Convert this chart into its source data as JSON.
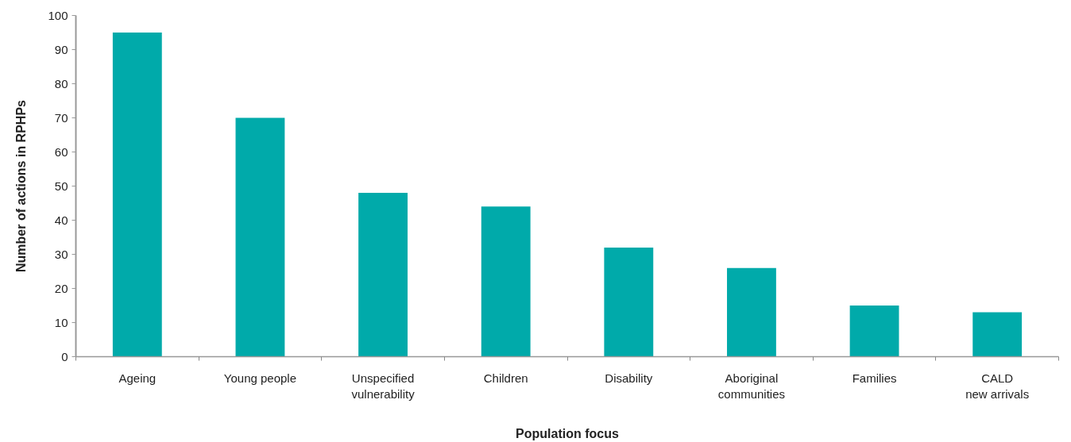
{
  "chart_data": {
    "type": "bar",
    "xlabel": "Population focus",
    "ylabel": "Number of actions in RPHPs",
    "categories": [
      "Ageing",
      "Young people",
      "Unspecified\nvulnerability",
      "Children",
      "Disability",
      "Aboriginal\ncommunities",
      "Families",
      "CALD\nnew arrivals"
    ],
    "values": [
      95,
      70,
      48,
      44,
      32,
      26,
      15,
      13
    ],
    "color": "#00aaaa",
    "ylim": [
      0,
      100
    ],
    "yticks": [
      0,
      10,
      20,
      30,
      40,
      50,
      60,
      70,
      80,
      90,
      100
    ],
    "grid": false
  }
}
